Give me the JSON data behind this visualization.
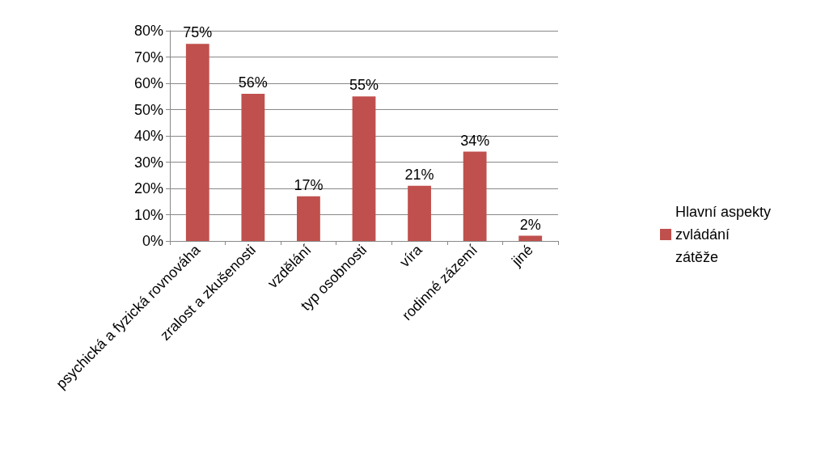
{
  "chart_data": {
    "type": "bar",
    "categories": [
      "psychická a fyzická rovnováha",
      "zralost a zkušenosti",
      "vzdělání",
      "typ osobnosti",
      "víra",
      "rodinné zázemí",
      "jiné"
    ],
    "series": [
      {
        "name": "Hlavní aspekty zvládání zátěže",
        "color": "#c0504d",
        "values": [
          75,
          56,
          17,
          55,
          21,
          34,
          2
        ],
        "value_labels": [
          "75%",
          "56%",
          "17%",
          "55%",
          "21%",
          "34%",
          "2%"
        ]
      }
    ],
    "ylim": [
      0,
      80
    ],
    "yticks": [
      {
        "value": 0,
        "label": "0%"
      },
      {
        "value": 10,
        "label": "10%"
      },
      {
        "value": 20,
        "label": "20%"
      },
      {
        "value": 30,
        "label": "30%"
      },
      {
        "value": 40,
        "label": "40%"
      },
      {
        "value": 50,
        "label": "50%"
      },
      {
        "value": 60,
        "label": "60%"
      },
      {
        "value": 70,
        "label": "70%"
      },
      {
        "value": 80,
        "label": "80%"
      }
    ],
    "grid": "y",
    "legend": "right"
  }
}
